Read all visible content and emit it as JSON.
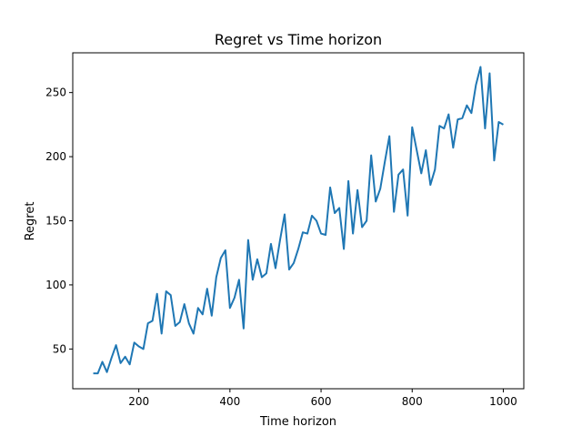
{
  "chart_data": {
    "type": "line",
    "title": "Regret vs Time horizon",
    "xlabel": "Time horizon",
    "ylabel": "Regret",
    "xlim": [
      55,
      1045
    ],
    "ylim": [
      19,
      281
    ],
    "xticks": [
      200,
      400,
      600,
      800,
      1000
    ],
    "yticks": [
      50,
      100,
      150,
      200,
      250
    ],
    "grid": false,
    "line_color": "#1f77b4",
    "series": [
      {
        "x": [
          100,
          110,
          120,
          130,
          140,
          150,
          160,
          170,
          180,
          190,
          200,
          210,
          220,
          230,
          240,
          250,
          260,
          270,
          280,
          290,
          300,
          310,
          320,
          330,
          340,
          350,
          360,
          370,
          380,
          390,
          400,
          410,
          420,
          430,
          440,
          450,
          460,
          470,
          480,
          490,
          500,
          510,
          520,
          530,
          540,
          550,
          560,
          570,
          580,
          590,
          600,
          610,
          620,
          630,
          640,
          650,
          660,
          670,
          680,
          690,
          700,
          710,
          720,
          730,
          740,
          750,
          760,
          770,
          780,
          790,
          800,
          810,
          820,
          830,
          840,
          850,
          860,
          870,
          880,
          890,
          900,
          910,
          920,
          930,
          940,
          950,
          960,
          970,
          980,
          990,
          1000
        ],
        "values": [
          31,
          31,
          40,
          32,
          43,
          53,
          39,
          44,
          38,
          55,
          52,
          50,
          70,
          72,
          93,
          62,
          95,
          92,
          68,
          71,
          85,
          70,
          62,
          82,
          77,
          97,
          76,
          106,
          121,
          127,
          82,
          90,
          104,
          66,
          135,
          104,
          120,
          106,
          109,
          132,
          113,
          135,
          155,
          112,
          117,
          128,
          141,
          140,
          154,
          150,
          140,
          139,
          176,
          156,
          160,
          128,
          181,
          140,
          174,
          145,
          150,
          201,
          165,
          175,
          196,
          216,
          157,
          186,
          190,
          154,
          223,
          205,
          187,
          205,
          178,
          190,
          224,
          222,
          233,
          207,
          229,
          230,
          240,
          234,
          256,
          270,
          222,
          265,
          197,
          227,
          225
        ]
      }
    ]
  }
}
